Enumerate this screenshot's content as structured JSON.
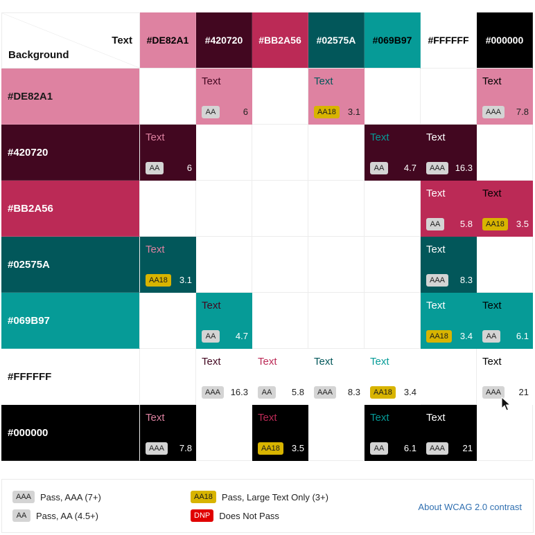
{
  "header": {
    "corner_text_label": "Text",
    "corner_background_label": "Background"
  },
  "columns": [
    {
      "hex": "#DE82A1",
      "bg": "#DE82A1",
      "fg": "#000000"
    },
    {
      "hex": "#420720",
      "bg": "#420720",
      "fg": "#ffffff"
    },
    {
      "hex": "#BB2A56",
      "bg": "#BB2A56",
      "fg": "#ffffff"
    },
    {
      "hex": "#02575A",
      "bg": "#02575A",
      "fg": "#ffffff"
    },
    {
      "hex": "#069B97",
      "bg": "#069B97",
      "fg": "#000000"
    },
    {
      "hex": "#FFFFFF",
      "bg": "#FFFFFF",
      "fg": "#000000"
    },
    {
      "hex": "#000000",
      "bg": "#000000",
      "fg": "#ffffff"
    }
  ],
  "rows": [
    {
      "hex": "#DE82A1",
      "bg": "#DE82A1",
      "fg": "#1a1a1a",
      "cells": [
        null,
        {
          "sample": "Text",
          "badge": "AA",
          "ratio": "6"
        },
        null,
        {
          "sample": "Text",
          "badge": "AA18",
          "ratio": "3.1"
        },
        null,
        null,
        {
          "sample": "Text",
          "badge": "AAA",
          "ratio": "7.8"
        }
      ]
    },
    {
      "hex": "#420720",
      "bg": "#420720",
      "fg": "#ffffff",
      "cells": [
        {
          "sample": "Text",
          "badge": "AA",
          "ratio": "6"
        },
        null,
        null,
        null,
        {
          "sample": "Text",
          "badge": "AA",
          "ratio": "4.7"
        },
        {
          "sample": "Text",
          "badge": "AAA",
          "ratio": "16.3"
        },
        null
      ]
    },
    {
      "hex": "#BB2A56",
      "bg": "#BB2A56",
      "fg": "#ffffff",
      "cells": [
        null,
        null,
        null,
        null,
        null,
        {
          "sample": "Text",
          "badge": "AA",
          "ratio": "5.8"
        },
        {
          "sample": "Text",
          "badge": "AA18",
          "ratio": "3.5"
        }
      ]
    },
    {
      "hex": "#02575A",
      "bg": "#02575A",
      "fg": "#ffffff",
      "cells": [
        {
          "sample": "Text",
          "badge": "AA18",
          "ratio": "3.1"
        },
        null,
        null,
        null,
        null,
        {
          "sample": "Text",
          "badge": "AAA",
          "ratio": "8.3"
        },
        null
      ]
    },
    {
      "hex": "#069B97",
      "bg": "#069B97",
      "fg": "#ffffff",
      "cells": [
        null,
        {
          "sample": "Text",
          "badge": "AA",
          "ratio": "4.7"
        },
        null,
        null,
        null,
        {
          "sample": "Text",
          "badge": "AA18",
          "ratio": "3.4"
        },
        {
          "sample": "Text",
          "badge": "AA",
          "ratio": "6.1"
        }
      ]
    },
    {
      "hex": "#FFFFFF",
      "bg": "#FFFFFF",
      "fg": "#111111",
      "cells": [
        null,
        {
          "sample": "Text",
          "badge": "AAA",
          "ratio": "16.3"
        },
        {
          "sample": "Text",
          "badge": "AA",
          "ratio": "5.8"
        },
        {
          "sample": "Text",
          "badge": "AAA",
          "ratio": "8.3"
        },
        {
          "sample": "Text",
          "badge": "AA18",
          "ratio": "3.4"
        },
        null,
        {
          "sample": "Text",
          "badge": "AAA",
          "ratio": "21"
        }
      ]
    },
    {
      "hex": "#000000",
      "bg": "#000000",
      "fg": "#ffffff",
      "cells": [
        {
          "sample": "Text",
          "badge": "AAA",
          "ratio": "7.8"
        },
        null,
        {
          "sample": "Text",
          "badge": "AA18",
          "ratio": "3.5"
        },
        null,
        {
          "sample": "Text",
          "badge": "AA",
          "ratio": "6.1"
        },
        {
          "sample": "Text",
          "badge": "AAA",
          "ratio": "21"
        },
        null
      ]
    }
  ],
  "legend": {
    "items": [
      {
        "badge": "AAA",
        "label": "Pass, AAA (7+)"
      },
      {
        "badge": "AA",
        "label": "Pass, AA (4.5+)"
      },
      {
        "badge": "AA18",
        "label": "Pass, Large Text Only (3+)"
      },
      {
        "badge": "DNP",
        "label": "Does Not Pass"
      }
    ],
    "link_label": "About WCAG 2.0 contrast"
  },
  "icons": {
    "cursor": "mouse-pointer-icon"
  }
}
